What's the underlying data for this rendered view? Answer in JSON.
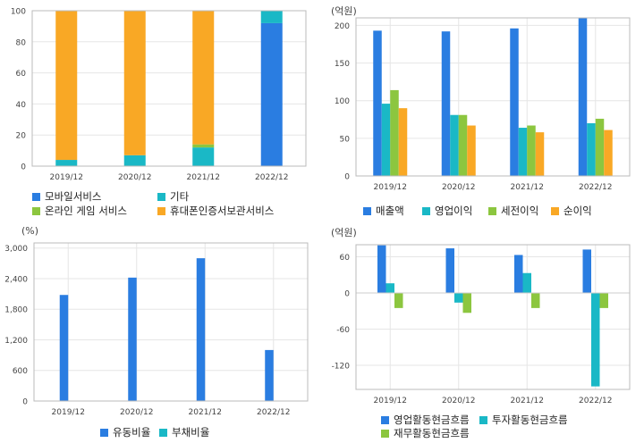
{
  "colors": {
    "blue": "#2a7de1",
    "teal": "#1ab8c6",
    "green": "#8cc63f",
    "orange": "#f9a825",
    "frame": "#bbbbbb",
    "grid": "#e6e6e6"
  },
  "chart_data": [
    {
      "id": "revenue-mix",
      "type": "bar",
      "stacked": true,
      "unit": "",
      "categories": [
        "2019/12",
        "2020/12",
        "2021/12",
        "2022/12"
      ],
      "ylim": [
        0,
        100
      ],
      "yticks": [
        0,
        20,
        40,
        60,
        80,
        100
      ],
      "series": [
        {
          "name": "모바일서비스",
          "color": "#2a7de1",
          "values": [
            0,
            0,
            0,
            92
          ]
        },
        {
          "name": "기타",
          "color": "#1ab8c6",
          "values": [
            4,
            7,
            12,
            8
          ]
        },
        {
          "name": "온라인 게임 서비스",
          "color": "#8cc63f",
          "values": [
            0,
            0,
            2,
            0
          ]
        },
        {
          "name": "휴대폰인증서보관서비스",
          "color": "#f9a825",
          "values": [
            96,
            93,
            86,
            0
          ]
        }
      ],
      "grid": true,
      "legend": "bottom"
    },
    {
      "id": "income",
      "type": "bar",
      "unit": "(억원)",
      "categories": [
        "2019/12",
        "2020/12",
        "2021/12",
        "2022/12"
      ],
      "ylim": [
        0,
        210
      ],
      "yticks": [
        0,
        50,
        100,
        150,
        200
      ],
      "series": [
        {
          "name": "매출액",
          "color": "#2a7de1",
          "values": [
            193,
            192,
            196,
            210
          ]
        },
        {
          "name": "영업이익",
          "color": "#1ab8c6",
          "values": [
            96,
            81,
            64,
            70
          ]
        },
        {
          "name": "세전이익",
          "color": "#8cc63f",
          "values": [
            114,
            81,
            67,
            76
          ]
        },
        {
          "name": "순이익",
          "color": "#f9a825",
          "values": [
            90,
            67,
            58,
            61
          ]
        }
      ],
      "grid": true,
      "legend": "bottom"
    },
    {
      "id": "ratios",
      "type": "bar",
      "unit": "(%)",
      "categories": [
        "2019/12",
        "2020/12",
        "2021/12",
        "2022/12"
      ],
      "ylim": [
        0,
        3100
      ],
      "yticks": [
        0,
        600,
        1200,
        1800,
        2400,
        3000
      ],
      "ytick_labels": [
        "0",
        "600",
        "1,200",
        "1,800",
        "2,400",
        "3,000"
      ],
      "series": [
        {
          "name": "유동비율",
          "color": "#2a7de1",
          "values": [
            2080,
            2420,
            2800,
            1000
          ]
        },
        {
          "name": "부채비율",
          "color": "#1ab8c6",
          "values": [
            0,
            0,
            0,
            0
          ]
        }
      ],
      "grid": true,
      "legend": "bottom"
    },
    {
      "id": "cashflow",
      "type": "bar",
      "unit": "(억원)",
      "categories": [
        "2019/12",
        "2020/12",
        "2021/12",
        "2022/12"
      ],
      "ylim": [
        -160,
        80
      ],
      "yticks": [
        -120,
        -60,
        0,
        60
      ],
      "series": [
        {
          "name": "영업활동현금흐름",
          "color": "#2a7de1",
          "values": [
            79,
            74,
            63,
            72
          ]
        },
        {
          "name": "투자활동현금흐름",
          "color": "#1ab8c6",
          "values": [
            16,
            -16,
            33,
            -155
          ]
        },
        {
          "name": "재무활동현금흐름",
          "color": "#8cc63f",
          "values": [
            -25,
            -33,
            -25,
            -25
          ]
        }
      ],
      "grid": true,
      "legend": "bottom"
    }
  ]
}
